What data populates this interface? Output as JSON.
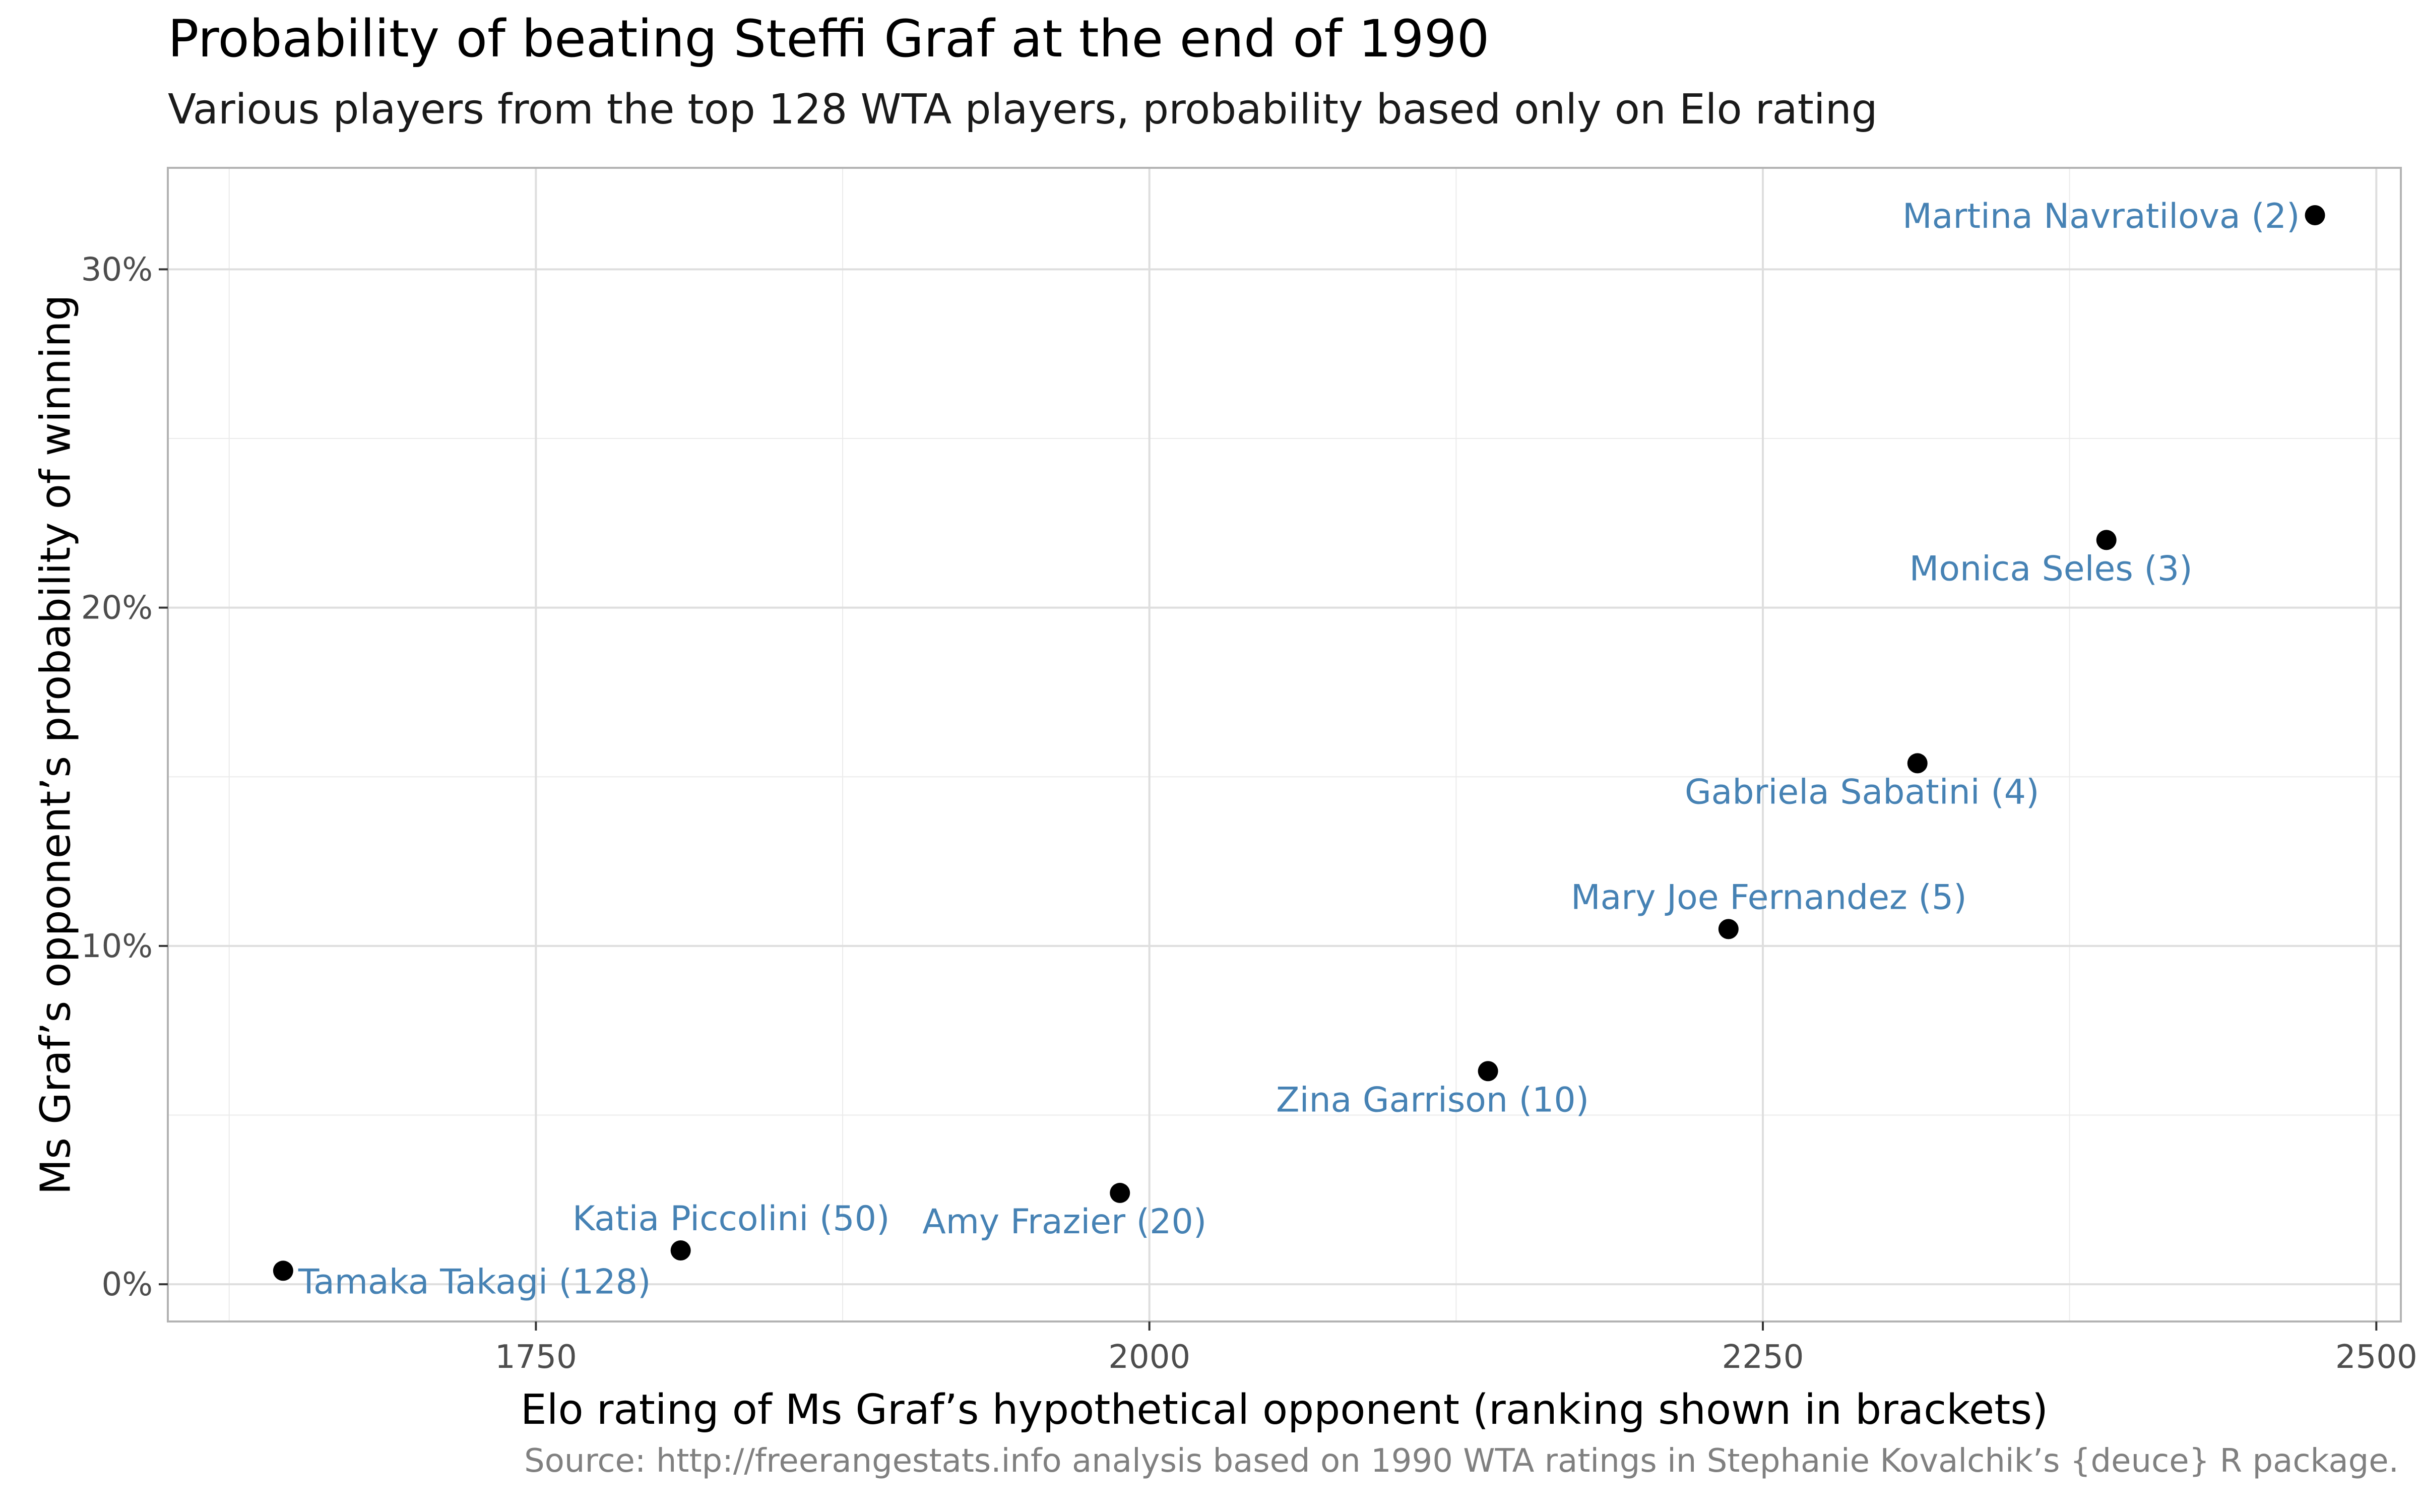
{
  "chart_data": {
    "type": "scatter",
    "title": "Probability of beating Steffi Graf at the end of 1990",
    "subtitle": "Various players from the top 128 WTA players, probability based only on Elo rating",
    "xlabel": "Elo rating of Ms Graf’s hypothetical opponent (ranking shown in brackets)",
    "ylabel": "Ms Graf’s opponent’s probability of winning",
    "caption": "Source: http://freerangestats.info analysis based on 1990 WTA ratings in Stephanie Kovalchik’s {deuce} R package.",
    "xlim": [
      1600,
      2510
    ],
    "ylim": [
      -0.011,
      0.33
    ],
    "x_ticks": [
      1750,
      2000,
      2250,
      2500
    ],
    "x_tick_labels": [
      "1750",
      "2000",
      "2250",
      "2500"
    ],
    "y_ticks": [
      0,
      0.1,
      0.2,
      0.3
    ],
    "y_tick_labels": [
      "0%",
      "10%",
      "20%",
      "30%"
    ],
    "grid": true,
    "point_color": "#000000",
    "label_color": "#4682b4",
    "points": [
      {
        "label": "Martina Navratilova (2)",
        "x": 2475,
        "y": 0.316
      },
      {
        "label": "Monica Seles (3)",
        "x": 2390,
        "y": 0.22
      },
      {
        "label": "Gabriela Sabatini (4)",
        "x": 2313,
        "y": 0.154
      },
      {
        "label": "Mary Joe Fernandez (5)",
        "x": 2236,
        "y": 0.105
      },
      {
        "label": "Zina Garrison (10)",
        "x": 2138,
        "y": 0.063
      },
      {
        "label": "Amy Frazier (20)",
        "x": 1988,
        "y": 0.027
      },
      {
        "label": "Katia Piccolini (50)",
        "x": 1809,
        "y": 0.01
      },
      {
        "label": "Tamaka Takagi (128)",
        "x": 1647,
        "y": 0.004
      }
    ]
  }
}
